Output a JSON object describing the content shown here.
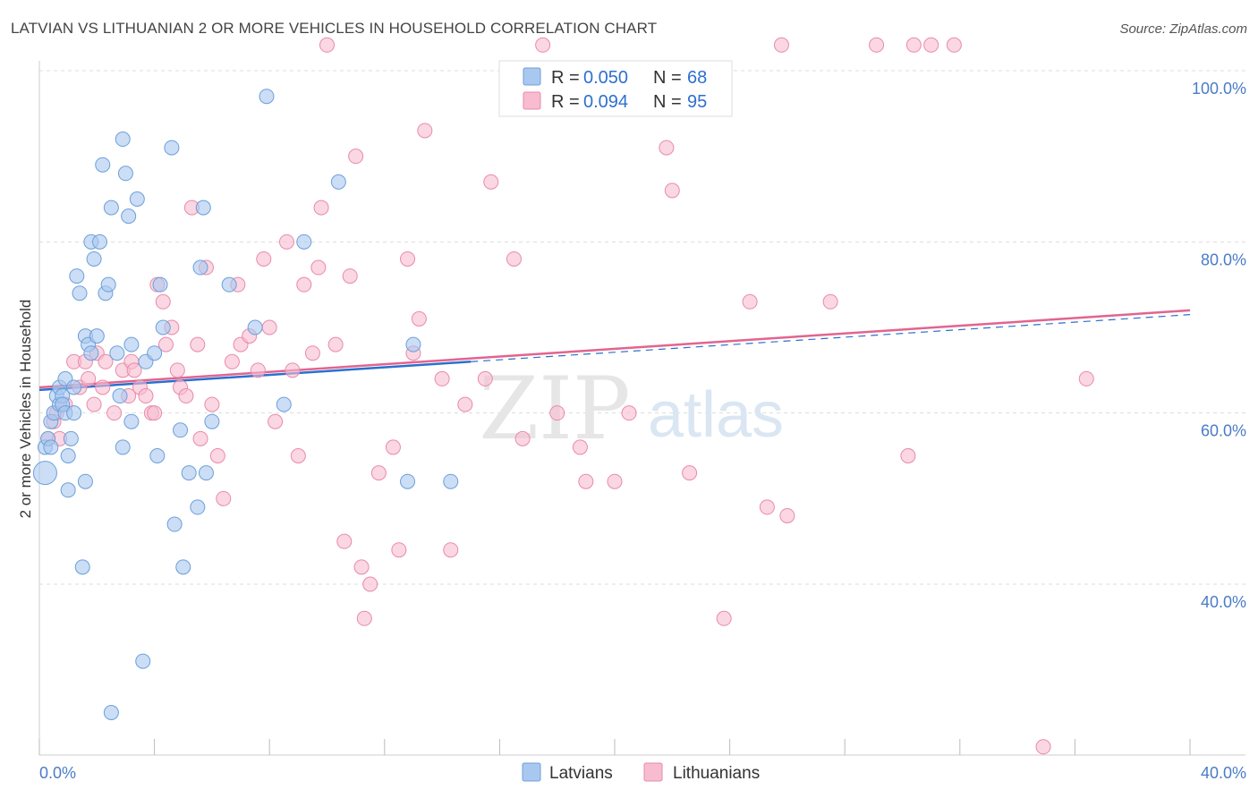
{
  "title": "LATVIAN VS LITHUANIAN 2 OR MORE VEHICLES IN HOUSEHOLD CORRELATION CHART",
  "source": "Source: ZipAtlas.com",
  "watermark": {
    "zip": "ZIP",
    "atlas": "atlas"
  },
  "legend_top": {
    "latvians": {
      "r_label": "R =",
      "r_value": "0.050",
      "n_label": "N =",
      "n_value": "68"
    },
    "lithuanians": {
      "r_label": "R =",
      "r_value": "0.094",
      "n_label": "N =",
      "n_value": "95"
    }
  },
  "legend_bottom": {
    "latvians": "Latvians",
    "lithuanians": "Lithuanians"
  },
  "colors": {
    "latvians_fill": "#a9c8f0",
    "latvians_stroke": "#6d9fd8",
    "latvians_line": "#2b6fcf",
    "lithuanians_fill": "#f7bcd0",
    "lithuanians_stroke": "#e98aaa",
    "lithuanians_line": "#e2648f",
    "tick_text": "#4a7cc7",
    "grid": "#dddddd"
  },
  "chart_data": {
    "type": "scatter",
    "title": "LATVIAN VS LITHUANIAN 2 OR MORE VEHICLES IN HOUSEHOLD CORRELATION CHART",
    "xlabel": "",
    "ylabel": "2 or more Vehicles in Household",
    "xlim": [
      0,
      40
    ],
    "ylim": [
      20,
      102
    ],
    "x_tick_labels": [
      "0.0%",
      "40.0%"
    ],
    "y_ticks": [
      40,
      60,
      80,
      100
    ],
    "y_tick_labels": [
      "40.0%",
      "60.0%",
      "80.0%",
      "100.0%"
    ],
    "grid": true,
    "legend_position": "top-center",
    "series": [
      {
        "name": "Latvians",
        "R": 0.05,
        "N": 68,
        "trend": {
          "x": [
            0,
            15,
            40
          ],
          "y": [
            62.7,
            66.0,
            71.5
          ],
          "solid_until": 15
        },
        "points": [
          [
            0.2,
            53
          ],
          [
            0.2,
            56
          ],
          [
            0.3,
            57
          ],
          [
            0.4,
            59
          ],
          [
            0.4,
            56
          ],
          [
            0.5,
            60
          ],
          [
            0.6,
            62
          ],
          [
            0.7,
            61
          ],
          [
            0.7,
            63
          ],
          [
            0.8,
            62
          ],
          [
            0.8,
            61
          ],
          [
            0.9,
            60
          ],
          [
            0.9,
            64
          ],
          [
            1.0,
            51
          ],
          [
            1.0,
            55
          ],
          [
            1.1,
            57
          ],
          [
            1.2,
            63
          ],
          [
            1.2,
            60
          ],
          [
            1.3,
            76
          ],
          [
            1.4,
            74
          ],
          [
            1.5,
            42
          ],
          [
            1.6,
            52
          ],
          [
            1.6,
            69
          ],
          [
            1.7,
            68
          ],
          [
            1.8,
            80
          ],
          [
            1.8,
            67
          ],
          [
            1.9,
            78
          ],
          [
            2.0,
            69
          ],
          [
            2.1,
            80
          ],
          [
            2.2,
            89
          ],
          [
            2.3,
            74
          ],
          [
            2.4,
            75
          ],
          [
            2.5,
            84
          ],
          [
            2.5,
            25
          ],
          [
            2.7,
            67
          ],
          [
            2.8,
            62
          ],
          [
            2.9,
            56
          ],
          [
            2.9,
            92
          ],
          [
            3.0,
            88
          ],
          [
            3.1,
            83
          ],
          [
            3.2,
            68
          ],
          [
            3.2,
            59
          ],
          [
            3.4,
            85
          ],
          [
            3.6,
            31
          ],
          [
            3.7,
            66
          ],
          [
            4.0,
            67
          ],
          [
            4.1,
            55
          ],
          [
            4.2,
            75
          ],
          [
            4.3,
            70
          ],
          [
            4.6,
            91
          ],
          [
            4.7,
            47
          ],
          [
            4.9,
            58
          ],
          [
            5.0,
            42
          ],
          [
            5.2,
            53
          ],
          [
            5.5,
            49
          ],
          [
            5.6,
            77
          ],
          [
            5.7,
            84
          ],
          [
            5.8,
            53
          ],
          [
            6.0,
            59
          ],
          [
            6.6,
            75
          ],
          [
            7.5,
            70
          ],
          [
            7.9,
            97
          ],
          [
            8.5,
            61
          ],
          [
            9.2,
            80
          ],
          [
            10.4,
            87
          ],
          [
            12.8,
            52
          ],
          [
            13.0,
            68
          ],
          [
            14.3,
            52
          ]
        ]
      },
      {
        "name": "Lithuanians",
        "R": 0.094,
        "N": 95,
        "trend": {
          "x": [
            0,
            40
          ],
          "y": [
            63.0,
            72.0
          ]
        },
        "points": [
          [
            0.3,
            57
          ],
          [
            0.5,
            59
          ],
          [
            0.6,
            60
          ],
          [
            0.7,
            57
          ],
          [
            0.9,
            61
          ],
          [
            1.2,
            66
          ],
          [
            1.4,
            63
          ],
          [
            1.6,
            66
          ],
          [
            1.7,
            64
          ],
          [
            1.9,
            61
          ],
          [
            2.0,
            67
          ],
          [
            2.2,
            63
          ],
          [
            2.3,
            66
          ],
          [
            2.6,
            60
          ],
          [
            2.9,
            65
          ],
          [
            3.1,
            62
          ],
          [
            3.2,
            66
          ],
          [
            3.3,
            65
          ],
          [
            3.5,
            63
          ],
          [
            3.7,
            62
          ],
          [
            3.9,
            60
          ],
          [
            4.0,
            60
          ],
          [
            4.1,
            75
          ],
          [
            4.3,
            73
          ],
          [
            4.4,
            68
          ],
          [
            4.6,
            70
          ],
          [
            4.8,
            65
          ],
          [
            4.9,
            63
          ],
          [
            5.1,
            62
          ],
          [
            5.3,
            84
          ],
          [
            5.5,
            68
          ],
          [
            5.6,
            57
          ],
          [
            5.8,
            77
          ],
          [
            6.0,
            61
          ],
          [
            6.2,
            55
          ],
          [
            6.4,
            50
          ],
          [
            6.7,
            66
          ],
          [
            6.9,
            75
          ],
          [
            7.0,
            68
          ],
          [
            7.3,
            69
          ],
          [
            7.6,
            65
          ],
          [
            7.8,
            78
          ],
          [
            8.0,
            70
          ],
          [
            8.2,
            59
          ],
          [
            8.6,
            80
          ],
          [
            8.8,
            65
          ],
          [
            9.0,
            55
          ],
          [
            9.2,
            75
          ],
          [
            9.5,
            67
          ],
          [
            9.7,
            77
          ],
          [
            9.8,
            84
          ],
          [
            10.0,
            103
          ],
          [
            10.3,
            68
          ],
          [
            10.6,
            45
          ],
          [
            10.8,
            76
          ],
          [
            11.0,
            90
          ],
          [
            11.2,
            42
          ],
          [
            11.3,
            36
          ],
          [
            11.5,
            40
          ],
          [
            11.8,
            53
          ],
          [
            12.3,
            56
          ],
          [
            12.5,
            44
          ],
          [
            12.8,
            78
          ],
          [
            13.0,
            67
          ],
          [
            13.2,
            71
          ],
          [
            13.4,
            93
          ],
          [
            14.0,
            64
          ],
          [
            14.3,
            44
          ],
          [
            14.8,
            61
          ],
          [
            15.5,
            64
          ],
          [
            15.7,
            87
          ],
          [
            16.5,
            78
          ],
          [
            16.8,
            57
          ],
          [
            17.5,
            103
          ],
          [
            18.0,
            60
          ],
          [
            18.8,
            56
          ],
          [
            19.0,
            52
          ],
          [
            20.0,
            52
          ],
          [
            20.5,
            60
          ],
          [
            21.8,
            91
          ],
          [
            22.0,
            86
          ],
          [
            22.6,
            53
          ],
          [
            23.8,
            36
          ],
          [
            24.7,
            73
          ],
          [
            25.3,
            49
          ],
          [
            25.8,
            103
          ],
          [
            26.0,
            48
          ],
          [
            27.5,
            73
          ],
          [
            29.1,
            103
          ],
          [
            30.2,
            55
          ],
          [
            34.9,
            21
          ],
          [
            36.4,
            64
          ],
          [
            31.0,
            103
          ],
          [
            31.8,
            103
          ],
          [
            30.4,
            103
          ]
        ]
      }
    ]
  }
}
